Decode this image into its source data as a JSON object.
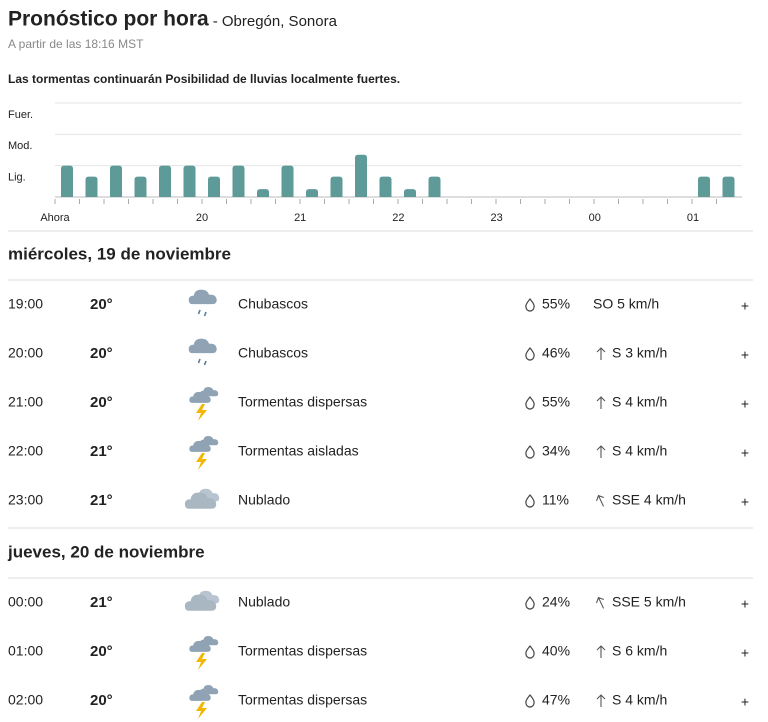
{
  "header": {
    "title": "Pronóstico por hora",
    "location": "- Obregón, Sonora",
    "updated": "A partir de las 18:16 MST"
  },
  "summary": "Las tormentas continuarán Posibilidad de lluvias localmente fuertes.",
  "chart_data": {
    "type": "bar",
    "color": "#5e9a98",
    "ylim": [
      0,
      3
    ],
    "yticks": [
      {
        "value": 1,
        "label": "Lig."
      },
      {
        "value": 2,
        "label": "Mod."
      },
      {
        "value": 3,
        "label": "Fuer."
      }
    ],
    "values": [
      1.0,
      0.65,
      1.0,
      0.65,
      1.0,
      1.0,
      0.65,
      1.0,
      0.25,
      1.0,
      0.25,
      0.65,
      1.35,
      0.65,
      0.25,
      0.65,
      null,
      null,
      null,
      null,
      null,
      null,
      null,
      null,
      null,
      null,
      0.65,
      0.65
    ],
    "hour_labels": [
      "Ahora",
      "20",
      "21",
      "22",
      "23",
      "00",
      "01"
    ]
  },
  "expand_label": "+",
  "days": [
    {
      "label": "miércoles, 19 de noviembre",
      "hours": [
        {
          "time": "19:00",
          "temp": "20°",
          "icon": "rain",
          "condition": "Chubascos",
          "precip": "55%",
          "wind": "SO 5 km/h"
        },
        {
          "time": "20:00",
          "temp": "20°",
          "icon": "rain",
          "condition": "Chubascos",
          "precip": "46%",
          "wind": "S 3 km/h"
        },
        {
          "time": "21:00",
          "temp": "20°",
          "icon": "storm",
          "condition": "Tormentas dispersas",
          "precip": "55%",
          "wind": "S 4 km/h"
        },
        {
          "time": "22:00",
          "temp": "21°",
          "icon": "storm",
          "condition": "Tormentas aisladas",
          "precip": "34%",
          "wind": "S 4 km/h"
        },
        {
          "time": "23:00",
          "temp": "21°",
          "icon": "cloud",
          "condition": "Nublado",
          "precip": "11%",
          "wind": "SSE 4 km/h"
        }
      ]
    },
    {
      "label": "jueves, 20 de noviembre",
      "hours": [
        {
          "time": "00:00",
          "temp": "21°",
          "icon": "cloud",
          "condition": "Nublado",
          "precip": "24%",
          "wind": "SSE 5 km/h"
        },
        {
          "time": "01:00",
          "temp": "20°",
          "icon": "storm",
          "condition": "Tormentas dispersas",
          "precip": "40%",
          "wind": "S 6 km/h"
        },
        {
          "time": "02:00",
          "temp": "20°",
          "icon": "storm",
          "condition": "Tormentas dispersas",
          "precip": "47%",
          "wind": "S 4 km/h"
        }
      ]
    }
  ]
}
